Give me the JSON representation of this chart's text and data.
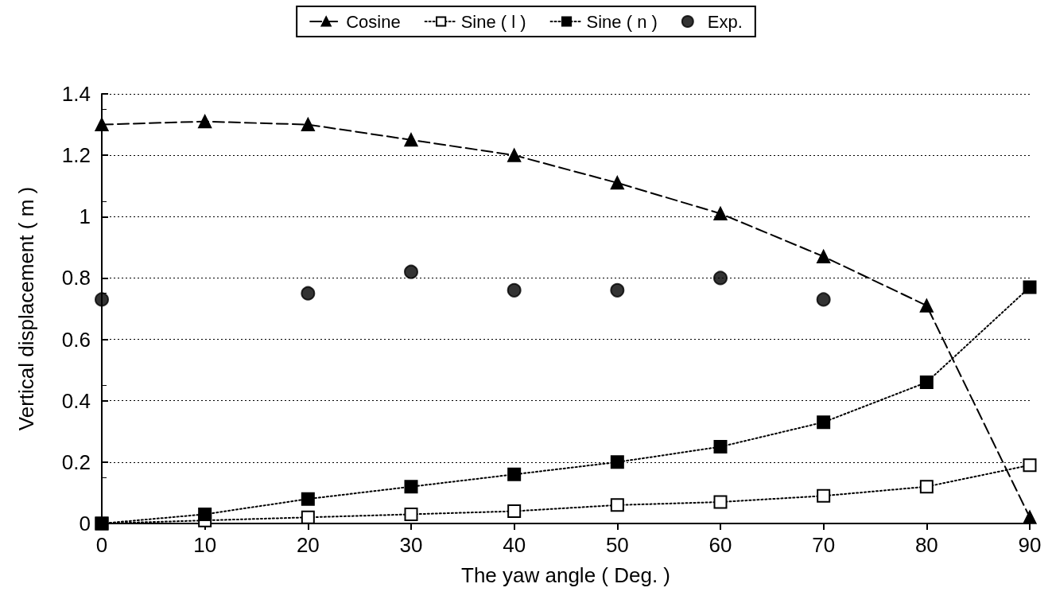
{
  "chart_data": {
    "type": "line",
    "xlabel": "The yaw angle ( Deg. )",
    "ylabel": "Vertical displacement ( m )",
    "x": [
      0,
      10,
      20,
      30,
      40,
      50,
      60,
      70,
      80,
      90
    ],
    "xlim": [
      0,
      90
    ],
    "xticks": [
      0,
      10,
      20,
      30,
      40,
      50,
      60,
      70,
      80,
      90
    ],
    "ylim": [
      0,
      1.4
    ],
    "yticks": [
      0,
      0.2,
      0.4,
      0.6,
      0.8,
      1,
      1.2,
      1.4
    ],
    "grid": "y",
    "legend": "top",
    "series": [
      {
        "name": "Cosine",
        "color": "#000000",
        "marker": "triangle",
        "line_style": "dashed",
        "values": [
          1.3,
          1.31,
          1.3,
          1.25,
          1.2,
          1.11,
          1.01,
          0.87,
          0.71,
          0.02
        ]
      },
      {
        "name": "Sine ( l )",
        "color": "#000000",
        "marker": "square",
        "line_style": "dotted",
        "values": [
          0,
          0.01,
          0.02,
          0.03,
          0.04,
          0.06,
          0.07,
          0.09,
          0.12,
          0.19
        ]
      },
      {
        "name": "Sine ( n )",
        "color": "#000000",
        "marker": "square",
        "line_style": "dotted",
        "values": [
          0,
          0.03,
          0.08,
          0.12,
          0.16,
          0.2,
          0.25,
          0.33,
          0.46,
          0.77
        ]
      },
      {
        "name": "Exp.",
        "type": "scatter",
        "color": "#000000",
        "marker": "circle",
        "x": [
          0,
          20,
          30,
          40,
          50,
          60,
          70
        ],
        "values": [
          0.73,
          0.75,
          0.82,
          0.76,
          0.76,
          0.8,
          0.73
        ]
      }
    ]
  }
}
